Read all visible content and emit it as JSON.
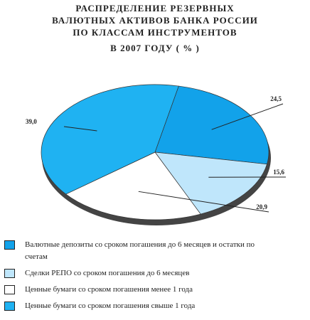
{
  "chart_data": {
    "type": "pie",
    "title": [
      "РАСПРЕДЕЛЕНИЕ РЕЗЕРВНЫХ",
      "ВАЛЮТНЫХ АКТИВОВ БАНКА РОССИИ",
      "ПО КЛАССАМ ИНСТРУМЕНТОВ",
      "В 2007 ГОДУ ( % )"
    ],
    "categories": [
      "Валютные депозиты со сроком погашения до 6 месяцев и остатки по счетам",
      "Сделки РЕПО со сроком погашения до 6 месяцев",
      "Ценные бумаги со сроком погашения менее 1 года",
      "Ценные бумаги со сроком погашения свыше 1 года"
    ],
    "values": [
      24.5,
      15.6,
      20.9,
      39.0
    ],
    "value_labels": [
      "24,5",
      "15,6",
      "20,9",
      "39,0"
    ],
    "colors": [
      "#12a2ea",
      "#bfe6fb",
      "#ffffff",
      "#1fb2f2"
    ]
  }
}
